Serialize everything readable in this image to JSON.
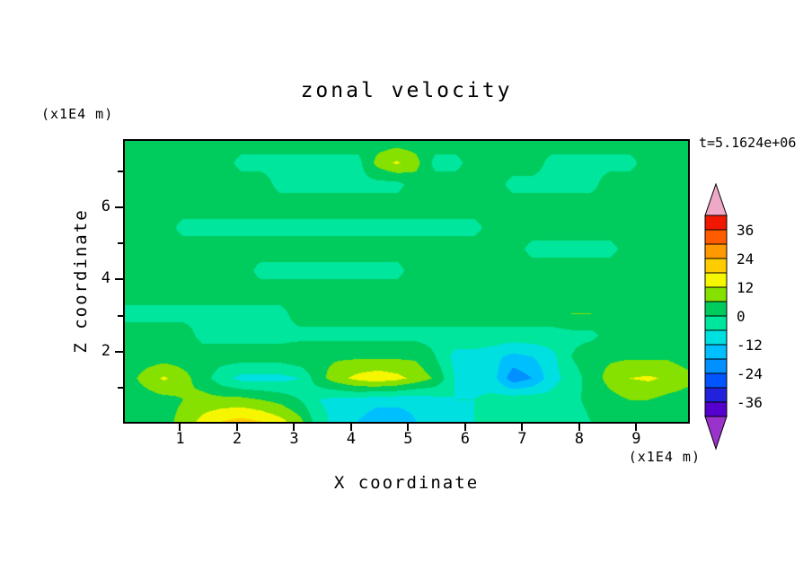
{
  "figure": {
    "title": "zonal velocity",
    "time_label": "t=5.1624e+06",
    "x_axis": {
      "label": "X coordinate",
      "units": "(x1E4 m)",
      "ticks": [
        1,
        2,
        3,
        4,
        5,
        6,
        7,
        8,
        9
      ],
      "range": [
        0,
        9.94
      ]
    },
    "z_axis": {
      "label": "Z coordinate",
      "units": "(x1E4 m)",
      "ticks_labeled": [
        2,
        4,
        6
      ],
      "ticks_minor": [
        1,
        3,
        5,
        7
      ],
      "range": [
        0,
        7.9
      ]
    },
    "colorbar": {
      "labels": [
        "36",
        "24",
        "12",
        "0",
        "-12",
        "-24",
        "-36"
      ],
      "level_step": 6,
      "colors_low_to_high": [
        "#9933cc",
        "#5500cc",
        "#2222dd",
        "#0055ff",
        "#0090ff",
        "#00bfff",
        "#00e0e0",
        "#00e69c",
        "#00cc5e",
        "#86e000",
        "#f6f600",
        "#ffcc00",
        "#ff9900",
        "#ff5c00",
        "#f01800",
        "#f0a8c8"
      ],
      "arrow_low_color": "#9933cc",
      "arrow_high_color": "#f0a8c8"
    }
  },
  "chart_data": {
    "type": "heatmap",
    "title": "zonal velocity",
    "xlabel": "X coordinate",
    "ylabel": "Z coordinate",
    "x_units": "x1E4 m",
    "y_units": "x1E4 m",
    "annotation": "t=5.1624e+06",
    "x_range": [
      0,
      9.94
    ],
    "y_range": [
      0,
      7.9
    ],
    "legend_position": "right-colorbar",
    "grid_on": false,
    "levels": [
      -42,
      -36,
      -30,
      -24,
      -18,
      -12,
      -6,
      0,
      6,
      12,
      18,
      24,
      30,
      36,
      42
    ],
    "colors": [
      "#9933cc",
      "#5500cc",
      "#2222dd",
      "#0055ff",
      "#0090ff",
      "#00bfff",
      "#00e0e0",
      "#00e69c",
      "#00cc5e",
      "#86e000",
      "#f6f600",
      "#ffcc00",
      "#ff9900",
      "#ff5c00",
      "#f01800",
      "#f0a8c8"
    ],
    "grid_note": "values[0] is the top row (z=7.9), last row is the bottom (z=0); each row spans x from 0 to 9.94 in 30 columns; units are velocity matching colorbar (-36..36)",
    "values": [
      [
        3,
        3,
        3,
        3,
        3,
        3,
        3,
        3,
        3,
        3,
        3,
        3,
        3,
        3,
        3,
        3,
        3,
        3,
        3,
        3,
        3,
        3,
        3,
        3,
        3,
        3,
        3,
        3,
        3,
        3
      ],
      [
        3,
        3,
        3,
        3,
        3,
        3,
        -2,
        -2,
        -2,
        -2,
        -2,
        -2,
        -2,
        8,
        13,
        8,
        -2,
        -2,
        3,
        3,
        3,
        3,
        -2,
        -2,
        -2,
        -2,
        -2,
        3,
        3,
        3
      ],
      [
        3,
        3,
        3,
        3,
        3,
        3,
        3,
        3,
        -2,
        -2,
        -2,
        -2,
        -2,
        -2,
        -2,
        3,
        3,
        3,
        3,
        3,
        -2,
        -2,
        -2,
        -2,
        -2,
        3,
        3,
        3,
        3,
        3
      ],
      [
        3,
        3,
        3,
        3,
        3,
        3,
        3,
        3,
        3,
        3,
        3,
        3,
        3,
        3,
        3,
        3,
        3,
        3,
        3,
        3,
        3,
        3,
        3,
        3,
        3,
        3,
        3,
        3,
        3,
        3
      ],
      [
        3,
        3,
        3,
        -2,
        -2,
        -2,
        -2,
        -2,
        -2,
        -2,
        -2,
        -2,
        -2,
        -2,
        -2,
        -2,
        -2,
        -2,
        -2,
        3,
        3,
        3,
        3,
        3,
        3,
        3,
        3,
        3,
        3,
        3
      ],
      [
        3,
        3,
        3,
        3,
        3,
        3,
        3,
        3,
        3,
        3,
        3,
        3,
        3,
        3,
        3,
        3,
        3,
        3,
        3,
        3,
        3,
        -2,
        -2,
        -2,
        -2,
        -2,
        3,
        3,
        3,
        3
      ],
      [
        3,
        3,
        3,
        3,
        3,
        3,
        3,
        -2,
        -2,
        -2,
        -2,
        -2,
        -2,
        -2,
        -2,
        3,
        3,
        3,
        3,
        3,
        3,
        3,
        3,
        3,
        3,
        3,
        3,
        3,
        3,
        3
      ],
      [
        3,
        3,
        3,
        3,
        3,
        3,
        3,
        3,
        3,
        3,
        3,
        3,
        3,
        3,
        3,
        3,
        3,
        3,
        3,
        3,
        3,
        3,
        3,
        3,
        3,
        3,
        3,
        3,
        3,
        3
      ],
      [
        -2,
        -2,
        -2,
        -2,
        -2,
        -2,
        -2,
        -2,
        -2,
        3,
        3,
        3,
        3,
        3,
        3,
        3,
        3,
        3,
        3,
        3,
        3,
        3,
        3,
        6,
        6,
        3,
        3,
        3,
        3,
        3
      ],
      [
        3,
        3,
        3,
        3,
        -2,
        -2,
        -2,
        -2,
        -2,
        -2,
        -2,
        -2,
        -2,
        -2,
        -2,
        -2,
        -2,
        -2,
        -2,
        -2,
        -2,
        -2,
        -2,
        -2,
        -2,
        3,
        3,
        3,
        3,
        3
      ],
      [
        3,
        3,
        3,
        3,
        3,
        3,
        3,
        3,
        3,
        5,
        5,
        5,
        5,
        5,
        5,
        5,
        0,
        -8,
        -8,
        -10,
        -14,
        -12,
        -8,
        0,
        5,
        5,
        5,
        5,
        5,
        3
      ],
      [
        3,
        8,
        13,
        8,
        3,
        -4,
        -8,
        -8,
        -8,
        -6,
        4,
        10,
        14,
        16,
        14,
        10,
        5,
        -6,
        -8,
        -10,
        -22,
        -18,
        -8,
        -4,
        3,
        8,
        12,
        13,
        11,
        8
      ],
      [
        3,
        3,
        4,
        6,
        8,
        8,
        8,
        6,
        4,
        0,
        -6,
        -8,
        -8,
        -10,
        -10,
        -10,
        -8,
        -6,
        -6,
        -4,
        -2,
        -2,
        -4,
        -2,
        2,
        4,
        6,
        6,
        4,
        3
      ],
      [
        3,
        3,
        4,
        8,
        14,
        18,
        20,
        18,
        14,
        8,
        -4,
        -8,
        -12,
        -16,
        -16,
        -12,
        -10,
        -8,
        -6,
        -4,
        0,
        -4,
        -6,
        -4,
        0,
        2,
        4,
        6,
        4,
        3
      ]
    ]
  }
}
